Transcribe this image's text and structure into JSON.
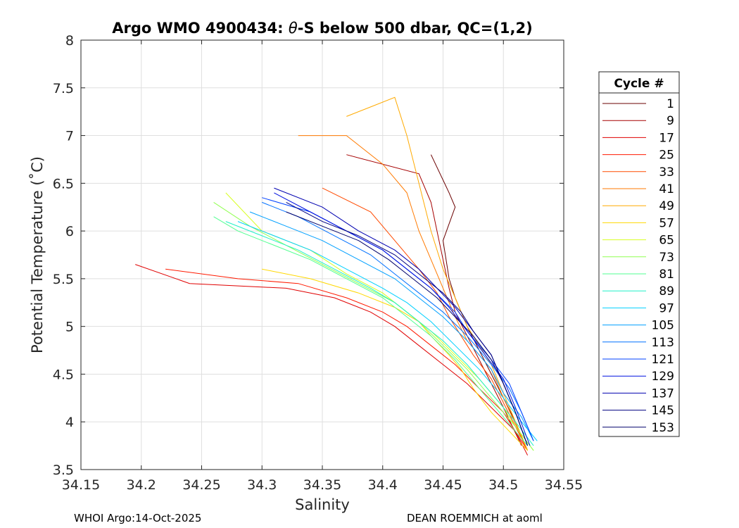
{
  "chart_data": {
    "type": "line",
    "title": "Argo WMO 4900434: θ-S below 500 dbar,  QC=(1,2)",
    "title_parts": {
      "prefix": "Argo WMO 4900434: ",
      "symbol": "θ",
      "suffix": "-S below 500 dbar,  QC=(1,2)"
    },
    "xlabel": "Salinity",
    "ylabel": "Potential Temperature (˚C)",
    "xlim": [
      34.15,
      34.55
    ],
    "ylim": [
      3.5,
      8
    ],
    "x_ticks": [
      34.15,
      34.2,
      34.25,
      34.3,
      34.35,
      34.4,
      34.45,
      34.5,
      34.55
    ],
    "y_ticks": [
      3.5,
      4,
      4.5,
      5,
      5.5,
      6,
      6.5,
      7,
      7.5,
      8
    ],
    "x_tick_labels": [
      "34.15",
      "34.2",
      "34.25",
      "34.3",
      "34.35",
      "34.4",
      "34.45",
      "34.5",
      "34.55"
    ],
    "y_tick_labels": [
      "3.5",
      "4",
      "4.5",
      "5",
      "5.5",
      "6",
      "6.5",
      "7",
      "7.5",
      "8"
    ],
    "grid": true,
    "legend": {
      "title": "Cycle #",
      "placement": "outside-right",
      "entries": [
        {
          "label": "1",
          "color": "#6b0000"
        },
        {
          "label": "9",
          "color": "#a50000"
        },
        {
          "label": "17",
          "color": "#e00000"
        },
        {
          "label": "25",
          "color": "#ff1a00"
        },
        {
          "label": "33",
          "color": "#ff4a00"
        },
        {
          "label": "41",
          "color": "#ff7a00"
        },
        {
          "label": "49",
          "color": "#ffaa00"
        },
        {
          "label": "57",
          "color": "#ffd800"
        },
        {
          "label": "65",
          "color": "#d8ff20"
        },
        {
          "label": "73",
          "color": "#90ff50"
        },
        {
          "label": "81",
          "color": "#50ff90"
        },
        {
          "label": "89",
          "color": "#20f0c8"
        },
        {
          "label": "97",
          "color": "#00d0ff"
        },
        {
          "label": "105",
          "color": "#00a0ff"
        },
        {
          "label": "113",
          "color": "#0070ff"
        },
        {
          "label": "121",
          "color": "#0040ff"
        },
        {
          "label": "129",
          "color": "#0010e0"
        },
        {
          "label": "137",
          "color": "#0000b0"
        },
        {
          "label": "145",
          "color": "#000080"
        },
        {
          "label": "153",
          "color": "#00006a"
        }
      ]
    },
    "series": [
      {
        "name": "1",
        "x": [
          34.44,
          34.455,
          34.46,
          34.45,
          34.455,
          34.46,
          34.47,
          34.48,
          34.49,
          34.5,
          34.51,
          34.52
        ],
        "y": [
          6.8,
          6.4,
          6.25,
          5.9,
          5.5,
          5.3,
          5.0,
          4.75,
          4.5,
          4.25,
          4.0,
          3.7
        ]
      },
      {
        "name": "9",
        "x": [
          34.37,
          34.43,
          34.44,
          34.445,
          34.45,
          34.455,
          34.46,
          34.47,
          34.48,
          34.49,
          34.5,
          34.515
        ],
        "y": [
          6.8,
          6.6,
          6.3,
          6.0,
          5.7,
          5.4,
          5.15,
          4.9,
          4.65,
          4.4,
          4.15,
          3.75
        ]
      },
      {
        "name": "17",
        "x": [
          34.195,
          34.24,
          34.32,
          34.36,
          34.39,
          34.41,
          34.43,
          34.45,
          34.47,
          34.49,
          34.51,
          34.52
        ],
        "y": [
          5.65,
          5.45,
          5.4,
          5.3,
          5.15,
          5.0,
          4.8,
          4.6,
          4.4,
          4.15,
          3.9,
          3.65
        ]
      },
      {
        "name": "25",
        "x": [
          34.22,
          34.28,
          34.33,
          34.37,
          34.4,
          34.42,
          34.44,
          34.46,
          34.48,
          34.5,
          34.51,
          34.52
        ],
        "y": [
          5.6,
          5.5,
          5.45,
          5.3,
          5.15,
          5.0,
          4.8,
          4.6,
          4.35,
          4.1,
          3.9,
          3.7
        ]
      },
      {
        "name": "33",
        "x": [
          34.35,
          34.39,
          34.41,
          34.43,
          34.445,
          34.455,
          34.465,
          34.475,
          34.49,
          34.5,
          34.51,
          34.52
        ],
        "y": [
          6.45,
          6.2,
          5.9,
          5.6,
          5.35,
          5.1,
          4.9,
          4.7,
          4.45,
          4.2,
          3.95,
          3.7
        ]
      },
      {
        "name": "41",
        "x": [
          34.33,
          34.37,
          34.4,
          34.42,
          34.43,
          34.44,
          34.45,
          34.46,
          34.47,
          34.49,
          34.5,
          34.52
        ],
        "y": [
          7.0,
          7.0,
          6.7,
          6.4,
          6.0,
          5.7,
          5.4,
          5.1,
          4.85,
          4.55,
          4.25,
          3.7
        ]
      },
      {
        "name": "49",
        "x": [
          34.37,
          34.39,
          34.41,
          34.42,
          34.43,
          34.44,
          34.45,
          34.46,
          34.47,
          34.49,
          34.5,
          34.52
        ],
        "y": [
          7.2,
          7.3,
          7.4,
          7.0,
          6.5,
          6.0,
          5.6,
          5.3,
          5.0,
          4.6,
          4.3,
          3.7
        ]
      },
      {
        "name": "57",
        "x": [
          34.3,
          34.34,
          34.38,
          34.41,
          34.43,
          34.44,
          34.455,
          34.465,
          34.475,
          34.49,
          34.505,
          34.52
        ],
        "y": [
          5.6,
          5.5,
          5.35,
          5.2,
          5.05,
          4.9,
          4.7,
          4.55,
          4.35,
          4.1,
          3.9,
          3.7
        ]
      },
      {
        "name": "65",
        "x": [
          34.27,
          34.3,
          34.34,
          34.37,
          34.4,
          34.42,
          34.44,
          34.46,
          34.48,
          34.5,
          34.51,
          34.525
        ],
        "y": [
          6.4,
          6.0,
          5.8,
          5.55,
          5.35,
          5.15,
          4.95,
          4.7,
          4.45,
          4.15,
          3.95,
          3.7
        ]
      },
      {
        "name": "73",
        "x": [
          34.26,
          34.29,
          34.32,
          34.35,
          34.38,
          34.41,
          34.43,
          34.45,
          34.47,
          34.49,
          34.51,
          34.525
        ],
        "y": [
          6.3,
          6.05,
          5.85,
          5.65,
          5.45,
          5.25,
          5.05,
          4.8,
          4.55,
          4.25,
          3.95,
          3.7
        ]
      },
      {
        "name": "81",
        "x": [
          34.26,
          34.28,
          34.31,
          34.34,
          34.37,
          34.4,
          34.42,
          34.44,
          34.46,
          34.48,
          34.5,
          34.52
        ],
        "y": [
          6.15,
          6.0,
          5.85,
          5.7,
          5.5,
          5.3,
          5.1,
          4.9,
          4.65,
          4.35,
          4.05,
          3.75
        ]
      },
      {
        "name": "89",
        "x": [
          34.27,
          34.3,
          34.33,
          34.36,
          34.39,
          34.41,
          34.43,
          34.45,
          34.47,
          34.49,
          34.51,
          34.525
        ],
        "y": [
          6.1,
          5.95,
          5.8,
          5.6,
          5.4,
          5.25,
          5.05,
          4.85,
          4.6,
          4.3,
          4.0,
          3.75
        ]
      },
      {
        "name": "97",
        "x": [
          34.28,
          34.31,
          34.34,
          34.37,
          34.4,
          34.42,
          34.44,
          34.46,
          34.48,
          34.5,
          34.515,
          34.528
        ],
        "y": [
          6.1,
          5.95,
          5.8,
          5.6,
          5.4,
          5.25,
          5.05,
          4.8,
          4.55,
          4.25,
          4.0,
          3.8
        ]
      },
      {
        "name": "105",
        "x": [
          34.29,
          34.32,
          34.35,
          34.38,
          34.41,
          34.43,
          34.45,
          34.47,
          34.49,
          34.5,
          34.515,
          34.525
        ],
        "y": [
          6.2,
          6.05,
          5.9,
          5.7,
          5.5,
          5.3,
          5.1,
          4.85,
          4.55,
          4.3,
          4.05,
          3.8
        ]
      },
      {
        "name": "113",
        "x": [
          34.3,
          34.33,
          34.36,
          34.39,
          34.41,
          34.43,
          34.45,
          34.47,
          34.49,
          34.505,
          34.515,
          34.525
        ],
        "y": [
          6.3,
          6.15,
          5.95,
          5.75,
          5.55,
          5.35,
          5.15,
          4.9,
          4.6,
          4.35,
          4.1,
          3.8
        ]
      },
      {
        "name": "121",
        "x": [
          34.3,
          34.34,
          34.37,
          34.4,
          34.42,
          34.44,
          34.46,
          34.47,
          34.49,
          34.505,
          34.515,
          34.525
        ],
        "y": [
          6.35,
          6.2,
          6.0,
          5.8,
          5.6,
          5.4,
          5.15,
          4.95,
          4.65,
          4.4,
          4.1,
          3.8
        ]
      },
      {
        "name": "129",
        "x": [
          34.31,
          34.34,
          34.37,
          34.4,
          34.42,
          34.44,
          34.455,
          34.47,
          34.485,
          34.5,
          34.51,
          34.522
        ],
        "y": [
          6.4,
          6.2,
          6.0,
          5.8,
          5.6,
          5.4,
          5.2,
          4.95,
          4.7,
          4.45,
          4.15,
          3.75
        ]
      },
      {
        "name": "137",
        "x": [
          34.31,
          34.35,
          34.38,
          34.41,
          34.43,
          34.445,
          34.46,
          34.475,
          34.49,
          34.5,
          34.51,
          34.52
        ],
        "y": [
          6.45,
          6.25,
          6.0,
          5.8,
          5.6,
          5.4,
          5.2,
          4.95,
          4.7,
          4.4,
          4.1,
          3.75
        ]
      },
      {
        "name": "145",
        "x": [
          34.32,
          34.35,
          34.38,
          34.41,
          34.43,
          34.45,
          34.465,
          34.475,
          34.49,
          34.5,
          34.51,
          34.52
        ],
        "y": [
          6.3,
          6.1,
          5.95,
          5.75,
          5.55,
          5.35,
          5.15,
          4.95,
          4.7,
          4.4,
          4.1,
          3.75
        ]
      },
      {
        "name": "153",
        "x": [
          34.32,
          34.35,
          34.38,
          34.405,
          34.425,
          34.445,
          34.46,
          34.475,
          34.49,
          34.5,
          34.51,
          34.52
        ],
        "y": [
          6.2,
          6.05,
          5.9,
          5.7,
          5.5,
          5.3,
          5.1,
          4.9,
          4.65,
          4.4,
          4.1,
          3.75
        ]
      }
    ]
  },
  "footer": {
    "left": "WHOI Argo:14-Oct-2025",
    "right": "DEAN ROEMMICH at aoml"
  }
}
